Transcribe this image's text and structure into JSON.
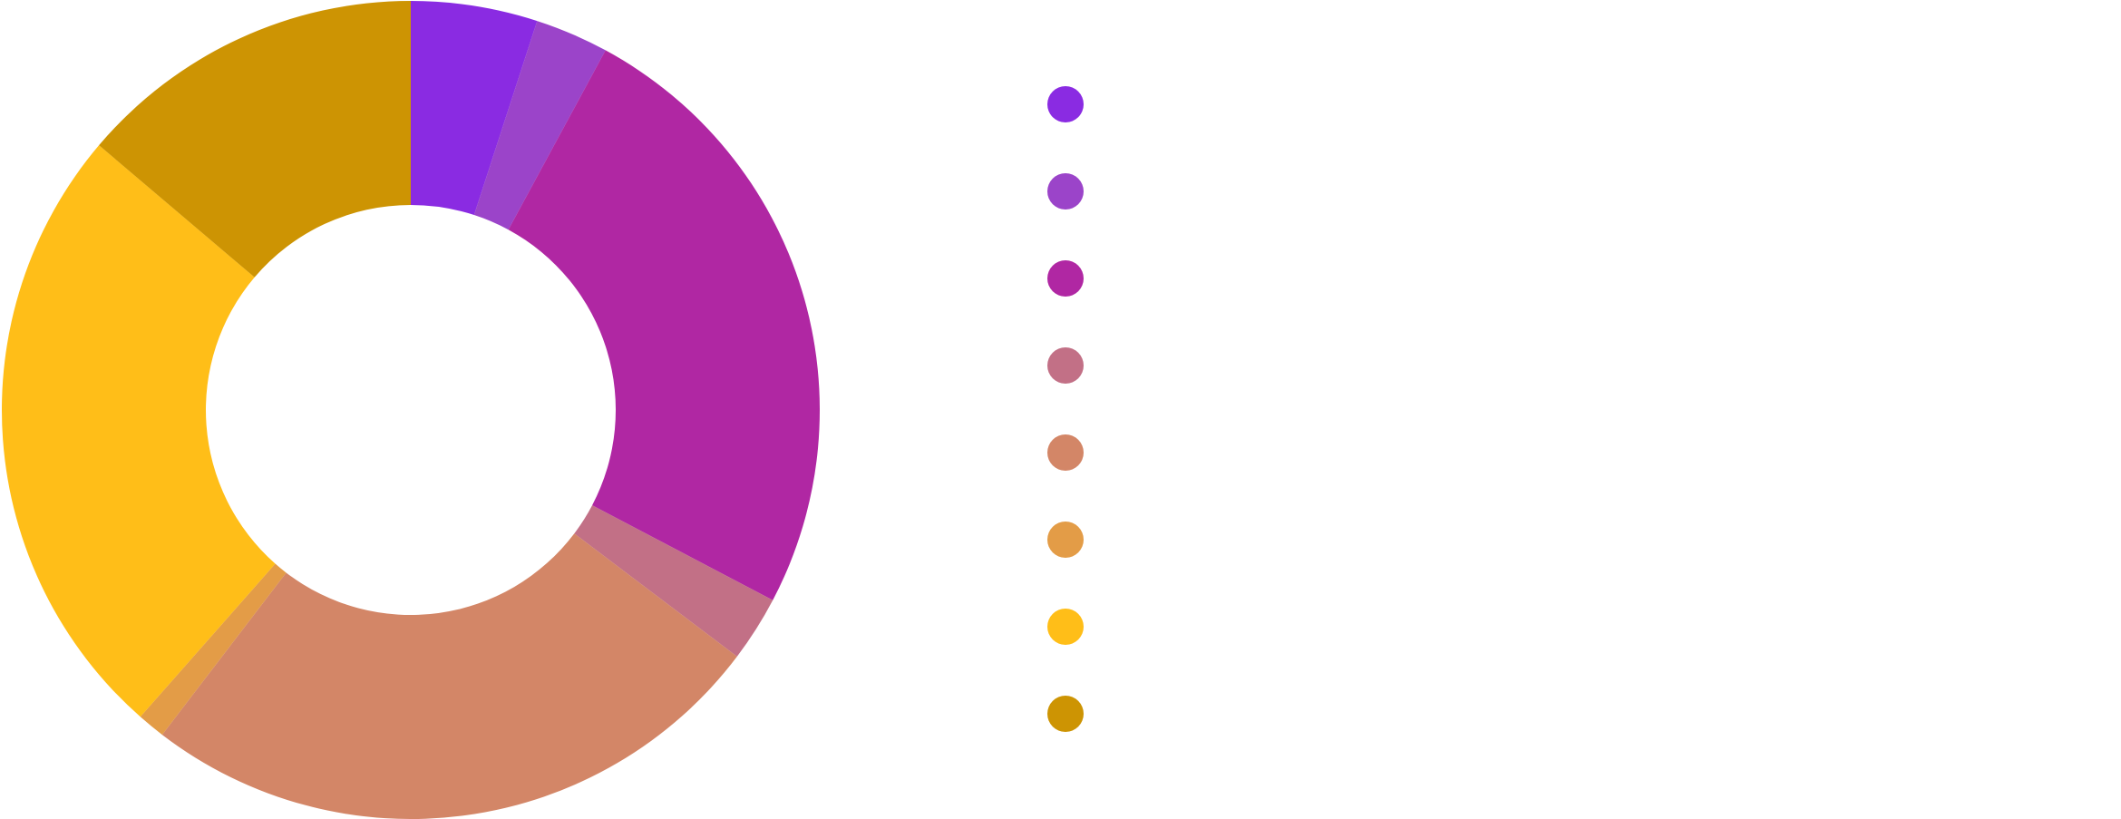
{
  "chart_data": {
    "type": "pie",
    "donut": true,
    "title": "",
    "legend_position": "right",
    "slices": [
      {
        "label": "",
        "value": 5.0,
        "color": "#8a2be2"
      },
      {
        "label": "",
        "value": 2.9,
        "color": "#9b44c9"
      },
      {
        "label": "",
        "value": 24.8,
        "color": "#b027a3"
      },
      {
        "label": "",
        "value": 2.6,
        "color": "#c27086"
      },
      {
        "label": "",
        "value": 25.1,
        "color": "#d38667"
      },
      {
        "label": "",
        "value": 1.1,
        "color": "#e39c47"
      },
      {
        "label": "",
        "value": 24.7,
        "color": "#ffbe18"
      },
      {
        "label": "",
        "value": 13.8,
        "color": "#cd9403"
      }
    ]
  }
}
